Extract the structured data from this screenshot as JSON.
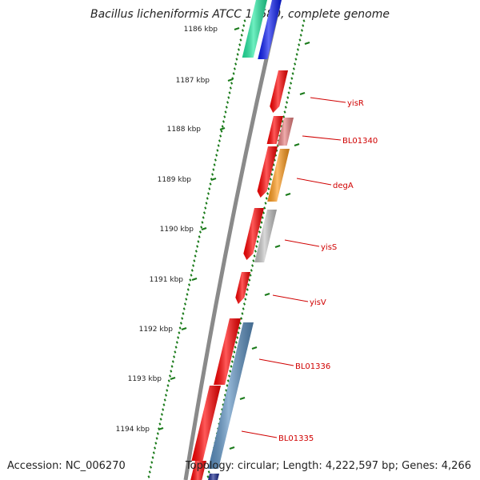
{
  "title": "Bacillus licheniformis ATCC 14580, complete genome",
  "footer": {
    "accession": "Accession: NC_006270",
    "summary": "Topology: circular; Length: 4,222,597 bp; Genes: 4,266"
  },
  "colors": {
    "backbone": "#8a8a8a",
    "tick": "#1a7a1a",
    "gene_label": "#d00000",
    "gene_red": "#ff0000",
    "gene_light_red": "#e98080",
    "gene_orange": "#ff9a1a",
    "gene_gray": "#c4c4c4",
    "gene_steelblue": "#5a8fc0",
    "gene_teal": "#22e8a0",
    "gene_blue": "#0b1cf2",
    "gene_navy": "#1a2a90"
  },
  "scale_labels": [
    "1186 kbp",
    "1187 kbp",
    "1188 kbp",
    "1189 kbp",
    "1190 kbp",
    "1191 kbp",
    "1192 kbp",
    "1193 kbp",
    "1194 kbp"
  ],
  "gene_labels": [
    "yisR",
    "BL01340",
    "degA",
    "yisS",
    "yisV",
    "BL01336",
    "BL01335"
  ]
}
